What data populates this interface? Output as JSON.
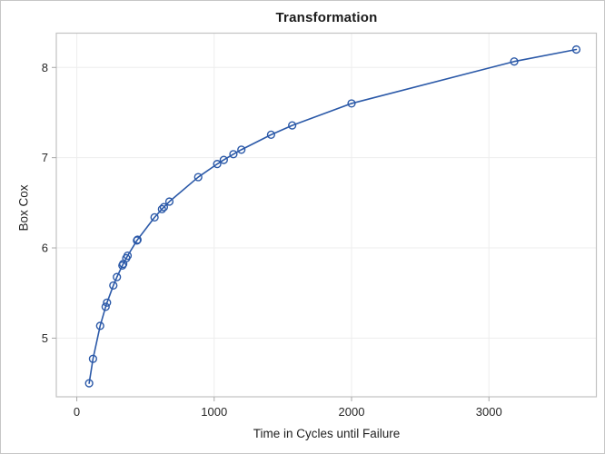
{
  "figure": {
    "title": "Transformation"
  },
  "chart_data": {
    "type": "line",
    "title": "Transformation",
    "xlabel": "Time in Cycles until Failure",
    "ylabel": "Box Cox",
    "x": [
      90,
      118,
      170,
      210,
      220,
      266,
      292,
      332,
      338,
      360,
      370,
      438,
      442,
      566,
      620,
      634,
      674,
      884,
      1022,
      1070,
      1140,
      1198,
      1414,
      1568,
      2000,
      3184,
      3636
    ],
    "y": [
      4.4998,
      4.7707,
      5.1358,
      5.3471,
      5.3936,
      5.5835,
      5.6768,
      5.8051,
      5.823,
      5.8861,
      5.9135,
      6.0822,
      6.0913,
      6.3386,
      6.4297,
      6.452,
      6.5132,
      6.7845,
      6.9295,
      6.9754,
      7.0388,
      7.0884,
      7.2542,
      7.3576,
      7.6009,
      8.0659,
      8.1987
    ],
    "x_ticks": [
      0,
      1000,
      2000,
      3000
    ],
    "y_ticks": [
      5,
      6,
      7,
      8
    ],
    "xlim": [
      -149,
      3782
    ],
    "ylim": [
      4.35,
      8.38
    ],
    "grid": true,
    "legend": false,
    "marker": "open-circle",
    "colors": {
      "series": "#2b59a8",
      "grid": "#ededed",
      "frame": "#c2c2c2",
      "tick": "#a8a8a8",
      "text": "#262626",
      "title": "#1a1a1a",
      "background": "#ffffff"
    }
  }
}
